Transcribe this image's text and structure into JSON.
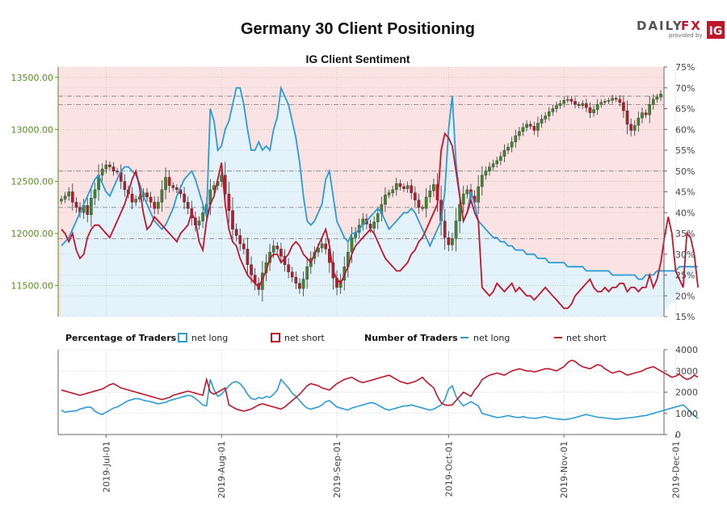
{
  "page": {
    "title": "Germany 30 Client Positioning",
    "subtitle": "IG Client Sentiment",
    "brand": {
      "daily": "DAILY",
      "fx": "FX",
      "provided_by": "provided by",
      "ig": "IG"
    }
  },
  "legend": {
    "pct_heading": "Percentage of Traders",
    "num_heading": "Number of Traders",
    "net_long": "net long",
    "net_short": "net short"
  },
  "colors": {
    "price_axis": "#5a8a1a",
    "net_long": "#2a9bd6",
    "net_short": "#c0162c",
    "long_fill": "#e3f2fb",
    "short_fill": "#fbe3e4",
    "candle_up": "#3b8a2a",
    "candle_down": "#c0162c"
  },
  "chart_data": [
    {
      "type": "candlestick+line",
      "title": "IG Client Sentiment",
      "left_axis": {
        "ticks": [
          "11500.00",
          "12000.00",
          "12500.00",
          "13000.00",
          "13500.00"
        ],
        "range": [
          11200,
          13600
        ]
      },
      "right_axis": {
        "ticks": [
          "15%",
          "20%",
          "25%",
          "30%",
          "35%",
          "40%",
          "45%",
          "50%",
          "55%",
          "60%",
          "65%",
          "70%",
          "75%"
        ],
        "range": [
          15,
          75
        ]
      },
      "x_ticks": [
        "2019-Jul-01",
        "2019-Aug-01",
        "2019-Sep-01",
        "2019-Oct-01",
        "2019-Nov-01",
        "2019-Dec-01"
      ],
      "x_tick_index": [
        12,
        43,
        74,
        104,
        135,
        165
      ],
      "reference_lines": {
        "percent": [
          50,
          68,
          66
        ],
        "price": [
          12600,
          12250,
          11950
        ]
      },
      "price_close": [
        12330,
        12360,
        12400,
        12300,
        12250,
        12200,
        12270,
        12180,
        12340,
        12420,
        12560,
        12620,
        12660,
        12640,
        12600,
        12590,
        12500,
        12420,
        12380,
        12300,
        12330,
        12350,
        12390,
        12350,
        12300,
        12240,
        12300,
        12420,
        12540,
        12460,
        12440,
        12420,
        12380,
        12300,
        12240,
        12150,
        12080,
        12120,
        12200,
        12280,
        12420,
        12460,
        12500,
        12560,
        12380,
        12220,
        12040,
        11980,
        11900,
        11850,
        11700,
        11600,
        11520,
        11460,
        11620,
        11720,
        11820,
        11880,
        11850,
        11780,
        11700,
        11630,
        11580,
        11520,
        11470,
        11560,
        11680,
        11760,
        11820,
        11860,
        11900,
        11850,
        11720,
        11570,
        11480,
        11550,
        11680,
        11820,
        11960,
        12010,
        12080,
        12140,
        12090,
        12050,
        12110,
        12190,
        12280,
        12370,
        12390,
        12420,
        12480,
        12450,
        12430,
        12460,
        12390,
        12320,
        12250,
        12240,
        12350,
        12410,
        12470,
        12320,
        12120,
        11960,
        11890,
        11950,
        12120,
        12280,
        12380,
        12420,
        12360,
        12300,
        12450,
        12560,
        12600,
        12640,
        12670,
        12700,
        12740,
        12800,
        12830,
        12880,
        12940,
        12980,
        13020,
        13050,
        13030,
        12990,
        13060,
        13100,
        13130,
        13170,
        13200,
        13230,
        13250,
        13280,
        13290,
        13270,
        13240,
        13230,
        13250,
        13210,
        13160,
        13190,
        13240,
        13260,
        13270,
        13280,
        13300,
        13290,
        13260,
        13180,
        13050,
        12990,
        13040,
        13110,
        13160,
        13140,
        13240,
        13290,
        13310,
        13340
      ],
      "percent_net_long": [
        32,
        33,
        34,
        36,
        38,
        40,
        42,
        44,
        46,
        48,
        49,
        47,
        45,
        44,
        46,
        48,
        50,
        51,
        51,
        50,
        49,
        47,
        44,
        42,
        40,
        38,
        37,
        36,
        37,
        39,
        41,
        44,
        46,
        48,
        49,
        50,
        48,
        45,
        42,
        39,
        65,
        62,
        55,
        56,
        60,
        62,
        66,
        70,
        70,
        66,
        60,
        55,
        55,
        57,
        55,
        56,
        55,
        60,
        63,
        70,
        68,
        66,
        62,
        58,
        52,
        44,
        38,
        37,
        38,
        40,
        42,
        48,
        50,
        44,
        38,
        36,
        34,
        33,
        35,
        35,
        36,
        37,
        38,
        39,
        40,
        41,
        40,
        38,
        36,
        37,
        38,
        39,
        40,
        40,
        41,
        40,
        38,
        36,
        34,
        32,
        34,
        36,
        38,
        45,
        60,
        68,
        52,
        44,
        38,
        40,
        45,
        42,
        38,
        37,
        36,
        35,
        34,
        34,
        33,
        33,
        32,
        32,
        31,
        31,
        31,
        30,
        30,
        30,
        29,
        29,
        29,
        28,
        28,
        28,
        28,
        28,
        27,
        27,
        27,
        27,
        27,
        26,
        26,
        26,
        26,
        26,
        26,
        26,
        25,
        25,
        25,
        25,
        25,
        25,
        25,
        24,
        24,
        25,
        25,
        25,
        26,
        26,
        26,
        26,
        26,
        26,
        27,
        27,
        27,
        27,
        27,
        27
      ],
      "percent_net_short_line": [
        36,
        35,
        34,
        35,
        32,
        31,
        30,
        34,
        36,
        37,
        38,
        40,
        42,
        44,
        38,
        36,
        34,
        33,
        35,
        36,
        40,
        42,
        45,
        48,
        50,
        44,
        38,
        36,
        39,
        41,
        43,
        45,
        46,
        47,
        46,
        45,
        40,
        36,
        32,
        40,
        45,
        48,
        50,
        52,
        40,
        36,
        33,
        32,
        28,
        25,
        26,
        24,
        23,
        22,
        24,
        26,
        30,
        33,
        31,
        26,
        28,
        30,
        32,
        34,
        36,
        38,
        35,
        30,
        32,
        34,
        36,
        38,
        30,
        22,
        21,
        20,
        22,
        24,
        26,
        30,
        32,
        34,
        36,
        38,
        35,
        33,
        31,
        29,
        27,
        26,
        25,
        23,
        22,
        24,
        26,
        28,
        30,
        31,
        33,
        32,
        34,
        36,
        34,
        30,
        35,
        58,
        56,
        52,
        48,
        44,
        40,
        35,
        32,
        21,
        20,
        19,
        20,
        22,
        21,
        20,
        22,
        21,
        20,
        21,
        20,
        19,
        18,
        17,
        18,
        19,
        20,
        21,
        20,
        18,
        17,
        16,
        16,
        17,
        18,
        19,
        20,
        21,
        22,
        21,
        20,
        19,
        18,
        17,
        16,
        15,
        16,
        17,
        18,
        19,
        20,
        21,
        22,
        20,
        18,
        22,
        24,
        28,
        34,
        39,
        35,
        26,
        24,
        22,
        35,
        34,
        36,
        33
      ],
      "net_short_line": [
        36,
        35,
        33,
        35,
        31,
        29,
        30,
        34,
        36,
        37,
        37,
        36,
        35,
        34,
        36,
        38,
        40,
        42,
        45,
        48,
        50,
        46,
        40,
        36,
        37,
        39,
        38,
        37,
        36,
        35,
        34,
        33,
        35,
        36,
        37,
        40,
        38,
        33,
        31,
        38,
        42,
        44,
        48,
        52,
        42,
        36,
        33,
        32,
        29,
        27,
        25,
        24,
        23,
        22,
        24,
        26,
        29,
        30,
        30,
        28,
        29,
        30,
        32,
        33,
        32,
        30,
        29,
        28,
        30,
        32,
        34,
        36,
        32,
        26,
        24,
        23,
        25,
        27,
        30,
        32,
        33,
        34,
        35,
        36,
        35,
        33,
        31,
        29,
        28,
        27,
        26,
        26,
        27,
        28,
        30,
        31,
        33,
        34,
        36,
        38,
        40,
        42,
        55,
        59,
        58,
        56,
        50,
        44,
        38,
        40,
        43,
        40,
        38,
        22,
        21,
        20,
        21,
        23,
        22,
        21,
        22,
        23,
        21,
        22,
        21,
        20,
        20,
        19,
        20,
        21,
        22,
        21,
        20,
        19,
        18,
        17,
        17,
        18,
        20,
        21,
        22,
        23,
        24,
        22,
        21,
        21,
        22,
        21,
        22,
        22,
        23,
        23,
        21,
        22,
        22,
        21,
        22,
        22,
        25,
        22,
        24,
        28,
        34,
        39,
        35,
        26,
        24,
        22,
        35,
        34,
        30,
        22
      ]
    },
    {
      "type": "line",
      "title": "Number of Traders",
      "y_ticks": [
        "0",
        "1000",
        "2000",
        "3000",
        "4000"
      ],
      "ylim": [
        0,
        4000
      ],
      "series": [
        {
          "name": "net long",
          "values": [
            1150,
            1050,
            1080,
            1100,
            1120,
            1200,
            1250,
            1300,
            1280,
            1100,
            1000,
            950,
            1050,
            1150,
            1250,
            1300,
            1400,
            1500,
            1600,
            1650,
            1700,
            1680,
            1620,
            1580,
            1550,
            1500,
            1450,
            1480,
            1520,
            1600,
            1650,
            1700,
            1750,
            1800,
            1850,
            1820,
            1700,
            1550,
            1400,
            1350,
            2600,
            2100,
            1800,
            1900,
            2100,
            2300,
            2450,
            2500,
            2400,
            2200,
            1900,
            1700,
            1650,
            1750,
            1700,
            1800,
            1750,
            1900,
            2100,
            2600,
            2400,
            2200,
            1950,
            1800,
            1600,
            1400,
            1250,
            1200,
            1250,
            1300,
            1400,
            1550,
            1600,
            1450,
            1300,
            1250,
            1200,
            1150,
            1250,
            1300,
            1350,
            1400,
            1450,
            1500,
            1480,
            1400,
            1300,
            1200,
            1150,
            1200,
            1250,
            1300,
            1350,
            1350,
            1400,
            1350,
            1300,
            1250,
            1200,
            1150,
            1200,
            1300,
            1400,
            1650,
            2150,
            2300,
            1800,
            1550,
            1350,
            1450,
            1550,
            1450,
            1350,
            1000,
            950,
            900,
            850,
            800,
            820,
            850,
            900,
            850,
            820,
            800,
            850,
            800,
            780,
            760,
            780,
            820,
            850,
            800,
            760,
            740,
            720,
            700,
            720,
            760,
            800,
            850,
            900,
            950,
            900,
            860,
            820,
            800,
            780,
            760,
            740,
            720,
            740,
            760,
            780,
            800,
            820,
            850,
            880,
            900,
            950,
            1000,
            1050,
            1100,
            1150,
            1200,
            1250,
            1300,
            1350,
            1400,
            1250,
            1050,
            900,
            750
          ]
        },
        {
          "name": "net short",
          "values": [
            2100,
            2050,
            2000,
            1950,
            1900,
            1850,
            1900,
            1950,
            2000,
            2050,
            2100,
            2150,
            2250,
            2350,
            2400,
            2300,
            2200,
            2150,
            2100,
            2050,
            2000,
            1950,
            1900,
            1850,
            1800,
            1750,
            1700,
            1650,
            1700,
            1750,
            1850,
            1900,
            1950,
            2000,
            2050,
            2000,
            1950,
            1900,
            1850,
            2600,
            2000,
            1900,
            2000,
            2100,
            2200,
            1400,
            1300,
            1200,
            1150,
            1100,
            1150,
            1200,
            1300,
            1400,
            1450,
            1400,
            1350,
            1300,
            1250,
            1200,
            1300,
            1450,
            1600,
            1750,
            1900,
            2100,
            2300,
            2400,
            2350,
            2300,
            2200,
            2150,
            2100,
            2250,
            2400,
            2500,
            2600,
            2650,
            2700,
            2600,
            2500,
            2450,
            2500,
            2550,
            2600,
            2650,
            2700,
            2750,
            2800,
            2700,
            2600,
            2500,
            2450,
            2400,
            2450,
            2500,
            2600,
            2700,
            2500,
            2350,
            2200,
            1800,
            1500,
            1400,
            1380,
            1400,
            1600,
            1800,
            2000,
            1900,
            1800,
            2100,
            2300,
            2600,
            2700,
            2800,
            2850,
            2900,
            2850,
            2800,
            2900,
            3000,
            3050,
            3100,
            3050,
            3000,
            3000,
            2950,
            3000,
            3050,
            3100,
            3100,
            3050,
            3000,
            3100,
            3200,
            3400,
            3500,
            3450,
            3300,
            3200,
            3150,
            3100,
            3200,
            3300,
            3250,
            3100,
            3000,
            2900,
            2950,
            3000,
            2900,
            2800,
            2850,
            2900,
            2950,
            3000,
            3100,
            3150,
            3200,
            3100,
            3000,
            2900,
            2800,
            2700,
            2750,
            2850,
            2700,
            2600,
            2650,
            2800,
            2700
          ]
        }
      ]
    }
  ]
}
